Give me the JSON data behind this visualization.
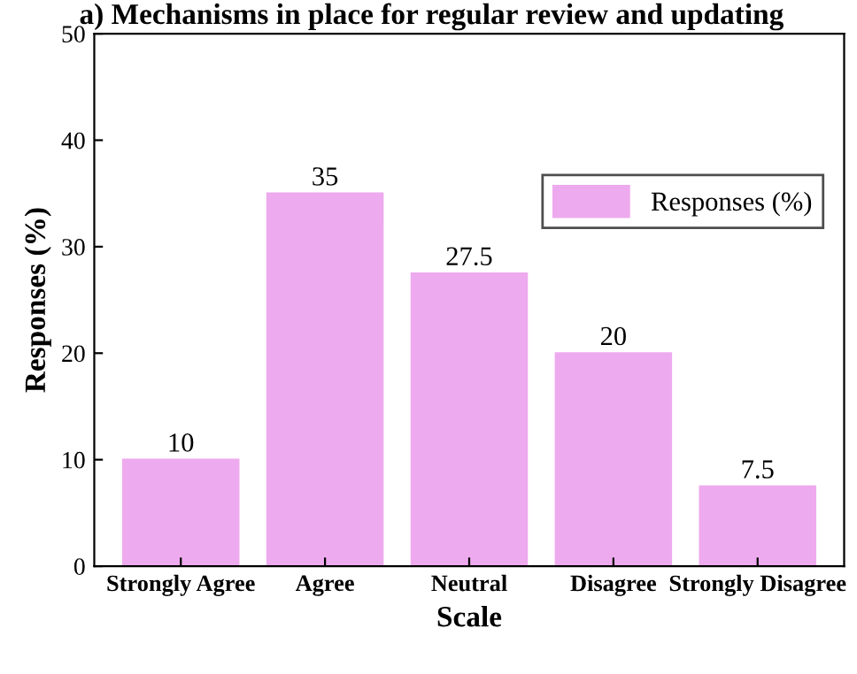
{
  "chart_data": {
    "type": "bar",
    "title": "a) Mechanisms in place for regular review and updating",
    "xlabel": "Scale",
    "ylabel": "Responses (%)",
    "categories": [
      "Strongly Agree",
      "Agree",
      "Neutral",
      "Disagree",
      "Strongly Disagree"
    ],
    "series": [
      {
        "name": "Responses (%)",
        "color": "#eeaaee",
        "values": [
          10,
          35,
          27.5,
          20,
          7.5
        ]
      }
    ],
    "ylim": [
      0,
      50
    ],
    "yticks": [
      0,
      10,
      20,
      30,
      40,
      50
    ],
    "data_labels": true,
    "legend": "top right",
    "grid": false
  }
}
